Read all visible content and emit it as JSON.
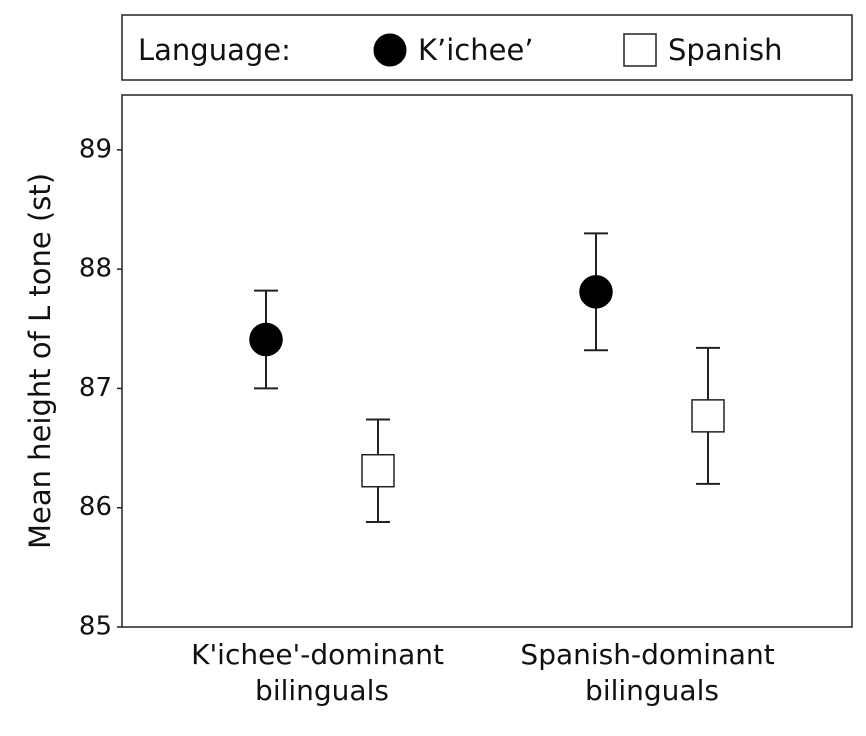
{
  "chart_data": {
    "type": "errorbar",
    "y_label": "Mean height of L tone (st)",
    "legend_title": "Language:",
    "categories": [
      "K'ichee'-dominant bilinguals",
      "Spanish-dominant bilinguals"
    ],
    "series": [
      {
        "name": "K’ichee’",
        "color": "#000000",
        "marker": "circle",
        "values": [
          87.41,
          87.81
        ],
        "errors": [
          0.41,
          0.49
        ]
      },
      {
        "name": "Spanish",
        "color": "#ffffff",
        "marker": "square",
        "values": [
          86.31,
          86.77
        ],
        "errors": [
          0.43,
          0.57
        ]
      }
    ],
    "ylim": [
      85,
      89.46
    ],
    "yticks": [
      85,
      86,
      87,
      88,
      89
    ],
    "grid": false
  }
}
